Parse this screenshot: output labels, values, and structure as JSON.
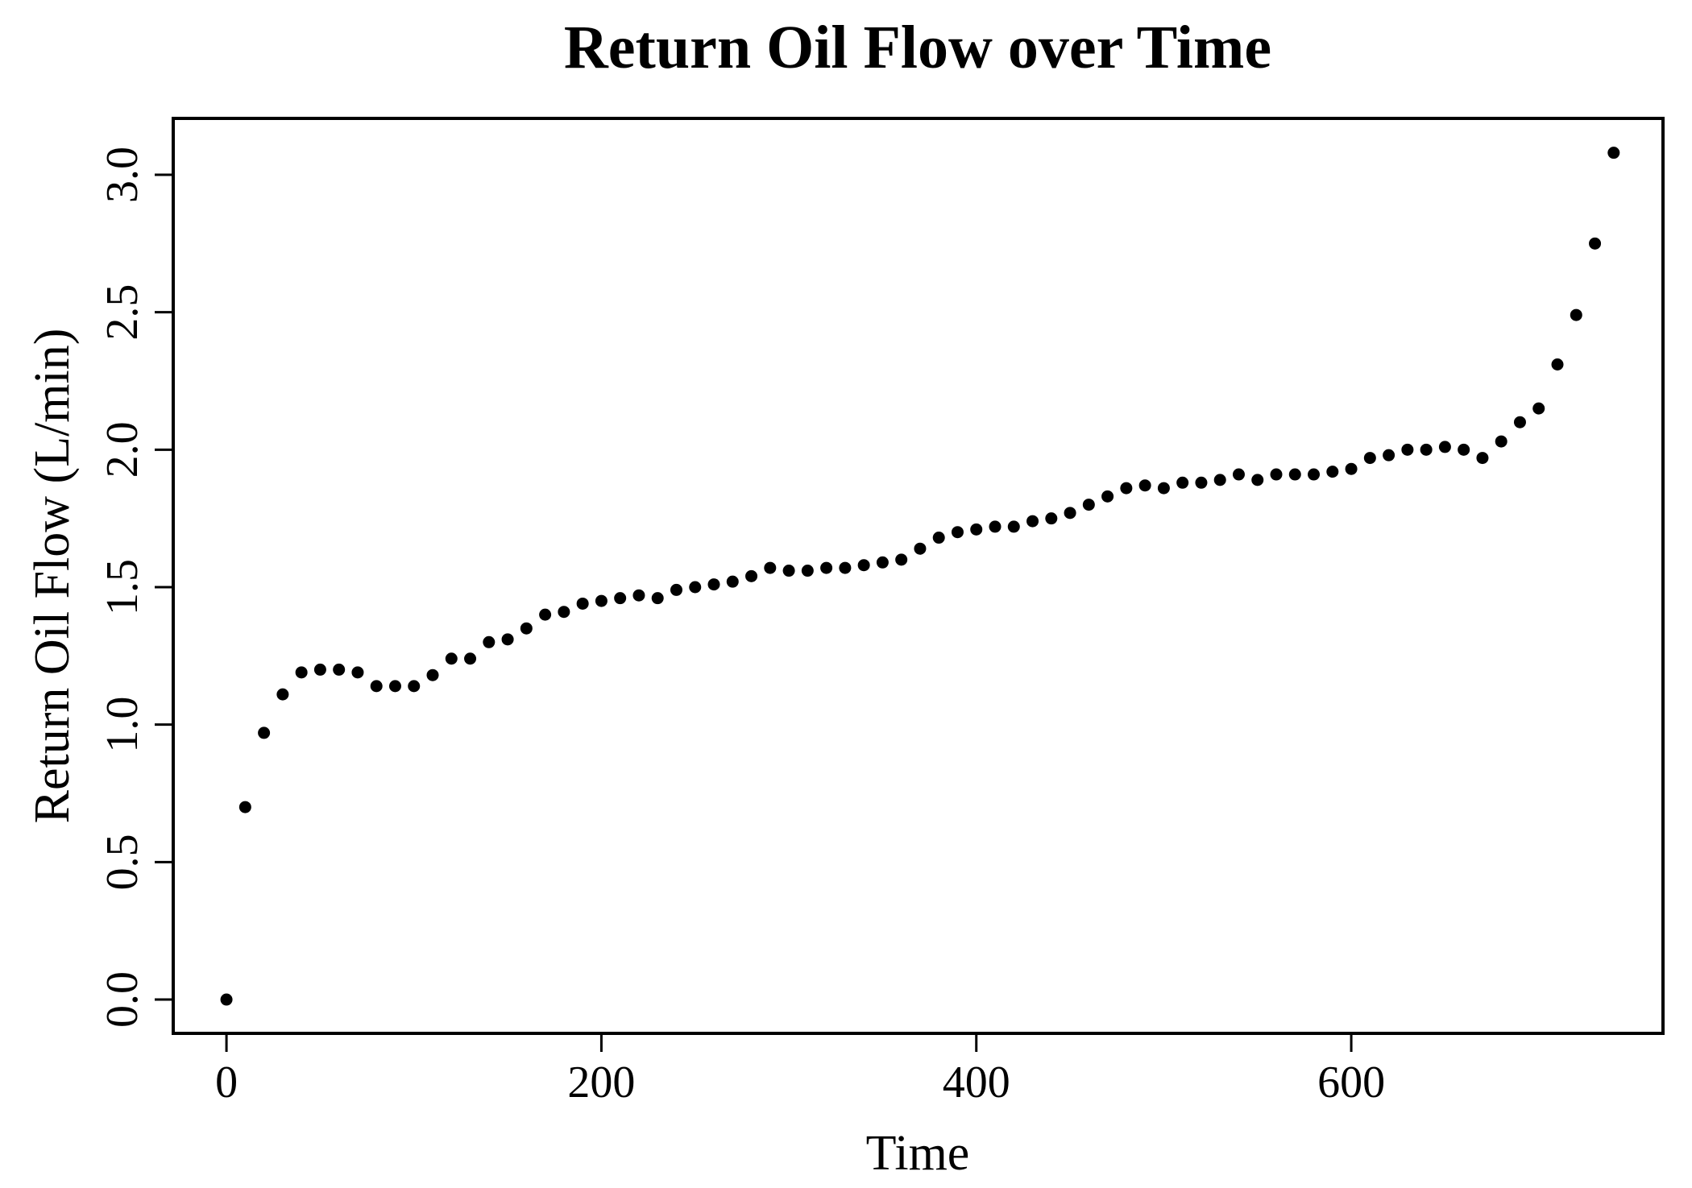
{
  "figure": {
    "background_color": "#ffffff",
    "axis_color": "#000000",
    "point_color": "#000000"
  },
  "chart_data": {
    "type": "scatter",
    "title": "Return Oil Flow over Time",
    "xlabel": "Time",
    "ylabel": "Return Oil Flow (L/min)",
    "x": [
      0,
      10,
      20,
      30,
      40,
      50,
      60,
      70,
      80,
      90,
      100,
      110,
      120,
      130,
      140,
      150,
      160,
      170,
      180,
      190,
      200,
      210,
      220,
      230,
      240,
      250,
      260,
      270,
      280,
      290,
      300,
      310,
      320,
      330,
      340,
      350,
      360,
      370,
      380,
      390,
      400,
      410,
      420,
      430,
      440,
      450,
      460,
      470,
      480,
      490,
      500,
      510,
      520,
      530,
      540,
      550,
      560,
      570,
      580,
      590,
      600,
      610,
      620,
      630,
      640,
      650,
      660,
      670,
      680,
      690,
      700,
      710,
      720,
      730,
      740
    ],
    "values": [
      0.0,
      0.7,
      0.97,
      1.11,
      1.19,
      1.2,
      1.2,
      1.19,
      1.14,
      1.14,
      1.14,
      1.18,
      1.24,
      1.24,
      1.3,
      1.31,
      1.35,
      1.4,
      1.41,
      1.44,
      1.45,
      1.46,
      1.47,
      1.46,
      1.49,
      1.5,
      1.51,
      1.52,
      1.54,
      1.57,
      1.56,
      1.56,
      1.57,
      1.57,
      1.58,
      1.59,
      1.6,
      1.64,
      1.68,
      1.7,
      1.71,
      1.72,
      1.72,
      1.74,
      1.75,
      1.77,
      1.8,
      1.83,
      1.86,
      1.87,
      1.86,
      1.88,
      1.88,
      1.89,
      1.91,
      1.89,
      1.91,
      1.91,
      1.91,
      1.92,
      1.93,
      1.97,
      1.98,
      2.0,
      2.0,
      2.01,
      2.0,
      1.97,
      2.03,
      2.1,
      2.15,
      2.31,
      2.49,
      2.75,
      3.08
    ],
    "xlim": [
      -28.4,
      766.3
    ],
    "ylim": [
      -0.123,
      3.205
    ],
    "x_ticks": [
      0,
      200,
      400,
      600
    ],
    "x_tick_labels": [
      "0",
      "200",
      "400",
      "600"
    ],
    "y_ticks": [
      0.0,
      0.5,
      1.0,
      1.5,
      2.0,
      2.5,
      3.0
    ],
    "y_tick_labels": [
      "0.0",
      "0.5",
      "1.0",
      "1.5",
      "2.0",
      "2.5",
      "3.0"
    ],
    "grid": false,
    "legend": "none",
    "marker": {
      "shape": "filled-circle",
      "radius_px": 7.5,
      "color": "#000000"
    }
  }
}
